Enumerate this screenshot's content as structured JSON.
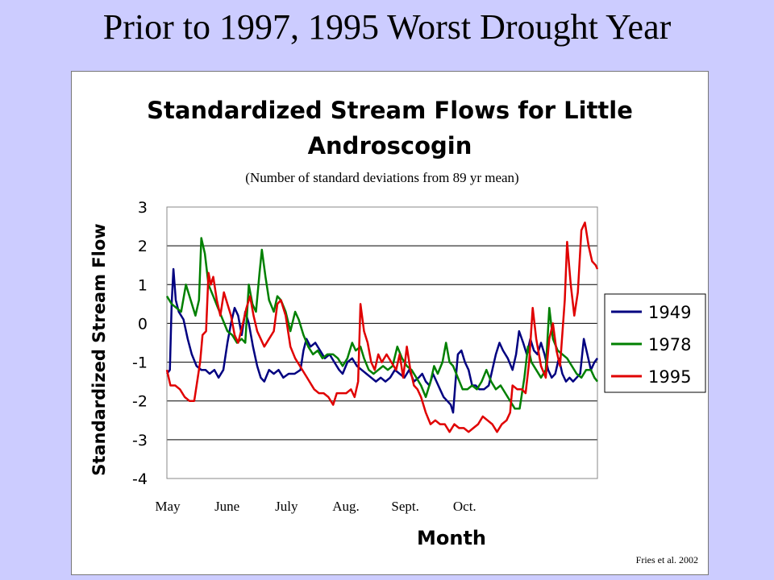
{
  "slide": {
    "title": "Prior to 1997, 1995 Worst Drought Year",
    "source": "Fries et al. 2002"
  },
  "chart_data": {
    "type": "line",
    "title": "Standardized Stream Flows for Little Androscogin",
    "subtitle": "(Number of standard deviations from 89 yr mean)",
    "xlabel": "Month",
    "ylabel": "Standardized Stream Flow",
    "ylim": [
      -4,
      3
    ],
    "yticks": [
      "3",
      "2",
      "1",
      "0",
      "-1",
      "-2",
      "-3",
      "-4"
    ],
    "xticks": [
      "May",
      "June",
      "July",
      "Aug.",
      "Sept.",
      "Oct."
    ],
    "grid": "horizontal",
    "legend": "right",
    "x_unit": "months since May 1",
    "series": [
      {
        "name": "1949",
        "color": "#000080",
        "values": [
          [
            0.0,
            -1.3
          ],
          [
            0.05,
            -1.2
          ],
          [
            0.08,
            0.5
          ],
          [
            0.11,
            1.4
          ],
          [
            0.15,
            0.6
          ],
          [
            0.2,
            0.3
          ],
          [
            0.28,
            0.1
          ],
          [
            0.35,
            -0.4
          ],
          [
            0.42,
            -0.8
          ],
          [
            0.5,
            -1.1
          ],
          [
            0.58,
            -1.2
          ],
          [
            0.65,
            -1.2
          ],
          [
            0.72,
            -1.3
          ],
          [
            0.8,
            -1.2
          ],
          [
            0.87,
            -1.4
          ],
          [
            0.95,
            -1.2
          ],
          [
            1.02,
            -0.5
          ],
          [
            1.08,
            0.0
          ],
          [
            1.14,
            0.4
          ],
          [
            1.2,
            0.2
          ],
          [
            1.26,
            -0.3
          ],
          [
            1.32,
            0.3
          ],
          [
            1.38,
            0.0
          ],
          [
            1.45,
            -0.6
          ],
          [
            1.52,
            -1.1
          ],
          [
            1.58,
            -1.4
          ],
          [
            1.64,
            -1.5
          ],
          [
            1.72,
            -1.2
          ],
          [
            1.8,
            -1.3
          ],
          [
            1.88,
            -1.2
          ],
          [
            1.96,
            -1.4
          ],
          [
            2.05,
            -1.3
          ],
          [
            2.15,
            -1.3
          ],
          [
            2.25,
            -1.2
          ],
          [
            2.3,
            -0.7
          ],
          [
            2.35,
            -0.4
          ],
          [
            2.42,
            -0.6
          ],
          [
            2.5,
            -0.5
          ],
          [
            2.58,
            -0.7
          ],
          [
            2.66,
            -0.9
          ],
          [
            2.74,
            -0.8
          ],
          [
            2.82,
            -1.0
          ],
          [
            2.9,
            -1.2
          ],
          [
            2.96,
            -1.3
          ],
          [
            3.04,
            -1.0
          ],
          [
            3.12,
            -0.9
          ],
          [
            3.2,
            -1.1
          ],
          [
            3.28,
            -1.2
          ],
          [
            3.36,
            -1.3
          ],
          [
            3.44,
            -1.4
          ],
          [
            3.52,
            -1.5
          ],
          [
            3.6,
            -1.4
          ],
          [
            3.68,
            -1.5
          ],
          [
            3.76,
            -1.4
          ],
          [
            3.84,
            -1.2
          ],
          [
            3.92,
            -1.3
          ],
          [
            4.0,
            -1.4
          ],
          [
            4.08,
            -1.2
          ],
          [
            4.16,
            -1.5
          ],
          [
            4.24,
            -1.4
          ],
          [
            4.3,
            -1.3
          ],
          [
            4.36,
            -1.5
          ],
          [
            4.42,
            -1.6
          ],
          [
            4.48,
            -1.3
          ],
          [
            4.54,
            -1.5
          ],
          [
            4.6,
            -1.7
          ],
          [
            4.66,
            -1.9
          ],
          [
            4.72,
            -2.0
          ],
          [
            4.78,
            -2.1
          ],
          [
            4.82,
            -2.3
          ],
          [
            4.86,
            -1.5
          ],
          [
            4.9,
            -0.8
          ],
          [
            4.96,
            -0.7
          ],
          [
            5.02,
            -1.0
          ],
          [
            5.08,
            -1.2
          ],
          [
            5.14,
            -1.6
          ],
          [
            5.2,
            -1.6
          ],
          [
            5.26,
            -1.7
          ],
          [
            5.34,
            -1.7
          ],
          [
            5.42,
            -1.6
          ],
          [
            5.48,
            -1.2
          ],
          [
            5.54,
            -0.8
          ],
          [
            5.6,
            -0.5
          ],
          [
            5.66,
            -0.7
          ],
          [
            5.74,
            -0.9
          ],
          [
            5.82,
            -1.2
          ],
          [
            5.88,
            -0.8
          ],
          [
            5.93,
            -0.2
          ],
          [
            6.0,
            -0.5
          ],
          [
            6.06,
            -0.8
          ],
          [
            6.12,
            -0.4
          ],
          [
            6.18,
            -0.7
          ],
          [
            6.24,
            -0.8
          ],
          [
            6.3,
            -0.5
          ],
          [
            6.36,
            -0.8
          ],
          [
            6.42,
            -1.2
          ],
          [
            6.48,
            -1.4
          ],
          [
            6.54,
            -1.3
          ],
          [
            6.6,
            -0.9
          ],
          [
            6.66,
            -1.3
          ],
          [
            6.72,
            -1.5
          ],
          [
            6.78,
            -1.4
          ],
          [
            6.84,
            -1.5
          ],
          [
            6.9,
            -1.4
          ],
          [
            6.96,
            -1.3
          ],
          [
            7.02,
            -0.4
          ],
          [
            7.08,
            -0.8
          ],
          [
            7.14,
            -1.2
          ],
          [
            7.2,
            -1.0
          ],
          [
            7.25,
            -0.9
          ]
        ]
      },
      {
        "name": "1978",
        "color": "#008000",
        "values": [
          [
            0.0,
            0.7
          ],
          [
            0.08,
            0.5
          ],
          [
            0.16,
            0.4
          ],
          [
            0.24,
            0.3
          ],
          [
            0.32,
            1.0
          ],
          [
            0.4,
            0.6
          ],
          [
            0.48,
            0.2
          ],
          [
            0.54,
            0.6
          ],
          [
            0.58,
            2.2
          ],
          [
            0.64,
            1.8
          ],
          [
            0.7,
            1.0
          ],
          [
            0.78,
            0.7
          ],
          [
            0.86,
            0.4
          ],
          [
            0.94,
            0.1
          ],
          [
            1.02,
            -0.2
          ],
          [
            1.1,
            -0.3
          ],
          [
            1.18,
            -0.5
          ],
          [
            1.26,
            -0.4
          ],
          [
            1.32,
            -0.5
          ],
          [
            1.38,
            1.0
          ],
          [
            1.44,
            0.5
          ],
          [
            1.5,
            0.3
          ],
          [
            1.56,
            1.3
          ],
          [
            1.6,
            1.9
          ],
          [
            1.66,
            1.2
          ],
          [
            1.72,
            0.6
          ],
          [
            1.8,
            0.3
          ],
          [
            1.86,
            0.7
          ],
          [
            1.92,
            0.6
          ],
          [
            2.0,
            0.3
          ],
          [
            2.08,
            -0.2
          ],
          [
            2.16,
            0.3
          ],
          [
            2.22,
            0.1
          ],
          [
            2.3,
            -0.3
          ],
          [
            2.38,
            -0.6
          ],
          [
            2.46,
            -0.8
          ],
          [
            2.54,
            -0.7
          ],
          [
            2.62,
            -0.9
          ],
          [
            2.7,
            -0.8
          ],
          [
            2.8,
            -0.8
          ],
          [
            2.88,
            -0.9
          ],
          [
            2.96,
            -1.1
          ],
          [
            3.04,
            -0.9
          ],
          [
            3.12,
            -0.5
          ],
          [
            3.18,
            -0.7
          ],
          [
            3.26,
            -0.6
          ],
          [
            3.32,
            -0.9
          ],
          [
            3.4,
            -1.2
          ],
          [
            3.48,
            -1.3
          ],
          [
            3.56,
            -1.2
          ],
          [
            3.64,
            -1.1
          ],
          [
            3.72,
            -1.2
          ],
          [
            3.8,
            -1.1
          ],
          [
            3.88,
            -0.6
          ],
          [
            3.96,
            -0.9
          ],
          [
            4.04,
            -1.1
          ],
          [
            4.12,
            -1.2
          ],
          [
            4.2,
            -1.4
          ],
          [
            4.28,
            -1.6
          ],
          [
            4.36,
            -1.9
          ],
          [
            4.44,
            -1.5
          ],
          [
            4.5,
            -1.1
          ],
          [
            4.56,
            -1.3
          ],
          [
            4.64,
            -1.0
          ],
          [
            4.7,
            -0.5
          ],
          [
            4.76,
            -1.0
          ],
          [
            4.82,
            -1.1
          ],
          [
            4.9,
            -1.4
          ],
          [
            4.98,
            -1.7
          ],
          [
            5.06,
            -1.7
          ],
          [
            5.14,
            -1.6
          ],
          [
            5.22,
            -1.7
          ],
          [
            5.3,
            -1.5
          ],
          [
            5.38,
            -1.2
          ],
          [
            5.46,
            -1.5
          ],
          [
            5.54,
            -1.7
          ],
          [
            5.62,
            -1.6
          ],
          [
            5.7,
            -1.8
          ],
          [
            5.78,
            -2.0
          ],
          [
            5.86,
            -2.2
          ],
          [
            5.94,
            -2.2
          ],
          [
            6.02,
            -1.4
          ],
          [
            6.08,
            -0.6
          ],
          [
            6.14,
            -1.0
          ],
          [
            6.22,
            -1.2
          ],
          [
            6.3,
            -1.4
          ],
          [
            6.38,
            -1.2
          ],
          [
            6.44,
            0.4
          ],
          [
            6.5,
            -0.4
          ],
          [
            6.58,
            -0.7
          ],
          [
            6.66,
            -0.8
          ],
          [
            6.74,
            -0.9
          ],
          [
            6.82,
            -1.1
          ],
          [
            6.9,
            -1.3
          ],
          [
            6.98,
            -1.4
          ],
          [
            7.06,
            -1.2
          ],
          [
            7.14,
            -1.2
          ],
          [
            7.2,
            -1.4
          ],
          [
            7.25,
            -1.5
          ]
        ]
      },
      {
        "name": "1995",
        "color": "#e00000",
        "values": [
          [
            0.0,
            -1.2
          ],
          [
            0.06,
            -1.6
          ],
          [
            0.14,
            -1.6
          ],
          [
            0.22,
            -1.7
          ],
          [
            0.3,
            -1.9
          ],
          [
            0.38,
            -2.0
          ],
          [
            0.46,
            -2.0
          ],
          [
            0.52,
            -1.4
          ],
          [
            0.56,
            -1.0
          ],
          [
            0.6,
            -0.3
          ],
          [
            0.66,
            -0.2
          ],
          [
            0.7,
            1.3
          ],
          [
            0.74,
            1.0
          ],
          [
            0.78,
            1.2
          ],
          [
            0.84,
            0.6
          ],
          [
            0.9,
            0.2
          ],
          [
            0.96,
            0.8
          ],
          [
            1.02,
            0.5
          ],
          [
            1.08,
            0.2
          ],
          [
            1.14,
            -0.3
          ],
          [
            1.2,
            -0.5
          ],
          [
            1.28,
            0.0
          ],
          [
            1.34,
            0.4
          ],
          [
            1.4,
            0.7
          ],
          [
            1.46,
            0.2
          ],
          [
            1.52,
            -0.2
          ],
          [
            1.58,
            -0.4
          ],
          [
            1.64,
            -0.6
          ],
          [
            1.72,
            -0.4
          ],
          [
            1.8,
            -0.2
          ],
          [
            1.86,
            0.5
          ],
          [
            1.92,
            0.6
          ],
          [
            2.0,
            0.2
          ],
          [
            2.08,
            -0.6
          ],
          [
            2.16,
            -0.9
          ],
          [
            2.24,
            -1.1
          ],
          [
            2.32,
            -1.3
          ],
          [
            2.4,
            -1.5
          ],
          [
            2.48,
            -1.7
          ],
          [
            2.56,
            -1.8
          ],
          [
            2.64,
            -1.8
          ],
          [
            2.72,
            -1.9
          ],
          [
            2.8,
            -2.1
          ],
          [
            2.86,
            -1.8
          ],
          [
            2.94,
            -1.8
          ],
          [
            3.02,
            -1.8
          ],
          [
            3.1,
            -1.7
          ],
          [
            3.16,
            -1.9
          ],
          [
            3.22,
            -1.5
          ],
          [
            3.26,
            0.5
          ],
          [
            3.32,
            -0.2
          ],
          [
            3.38,
            -0.5
          ],
          [
            3.44,
            -1.0
          ],
          [
            3.5,
            -1.2
          ],
          [
            3.56,
            -0.8
          ],
          [
            3.62,
            -1.0
          ],
          [
            3.7,
            -0.8
          ],
          [
            3.78,
            -1.0
          ],
          [
            3.86,
            -1.2
          ],
          [
            3.92,
            -0.8
          ],
          [
            3.98,
            -1.4
          ],
          [
            4.04,
            -0.6
          ],
          [
            4.1,
            -1.2
          ],
          [
            4.16,
            -1.6
          ],
          [
            4.22,
            -1.7
          ],
          [
            4.28,
            -1.9
          ],
          [
            4.36,
            -2.3
          ],
          [
            4.44,
            -2.6
          ],
          [
            4.52,
            -2.5
          ],
          [
            4.6,
            -2.6
          ],
          [
            4.68,
            -2.6
          ],
          [
            4.76,
            -2.8
          ],
          [
            4.84,
            -2.6
          ],
          [
            4.92,
            -2.7
          ],
          [
            5.0,
            -2.7
          ],
          [
            5.08,
            -2.8
          ],
          [
            5.16,
            -2.7
          ],
          [
            5.24,
            -2.6
          ],
          [
            5.32,
            -2.4
          ],
          [
            5.4,
            -2.5
          ],
          [
            5.48,
            -2.6
          ],
          [
            5.56,
            -2.8
          ],
          [
            5.64,
            -2.6
          ],
          [
            5.72,
            -2.5
          ],
          [
            5.78,
            -2.3
          ],
          [
            5.82,
            -1.6
          ],
          [
            5.9,
            -1.7
          ],
          [
            5.98,
            -1.7
          ],
          [
            6.04,
            -1.8
          ],
          [
            6.1,
            -1.0
          ],
          [
            6.16,
            0.4
          ],
          [
            6.22,
            -0.4
          ],
          [
            6.3,
            -1.1
          ],
          [
            6.38,
            -1.4
          ],
          [
            6.44,
            -0.4
          ],
          [
            6.5,
            0.0
          ],
          [
            6.56,
            -0.7
          ],
          [
            6.62,
            -1.1
          ],
          [
            6.7,
            0.6
          ],
          [
            6.74,
            2.1
          ],
          [
            6.8,
            1.0
          ],
          [
            6.86,
            0.2
          ],
          [
            6.92,
            0.8
          ],
          [
            6.98,
            2.4
          ],
          [
            7.04,
            2.6
          ],
          [
            7.1,
            2.0
          ],
          [
            7.16,
            1.6
          ],
          [
            7.22,
            1.5
          ],
          [
            7.25,
            1.4
          ]
        ]
      }
    ]
  }
}
